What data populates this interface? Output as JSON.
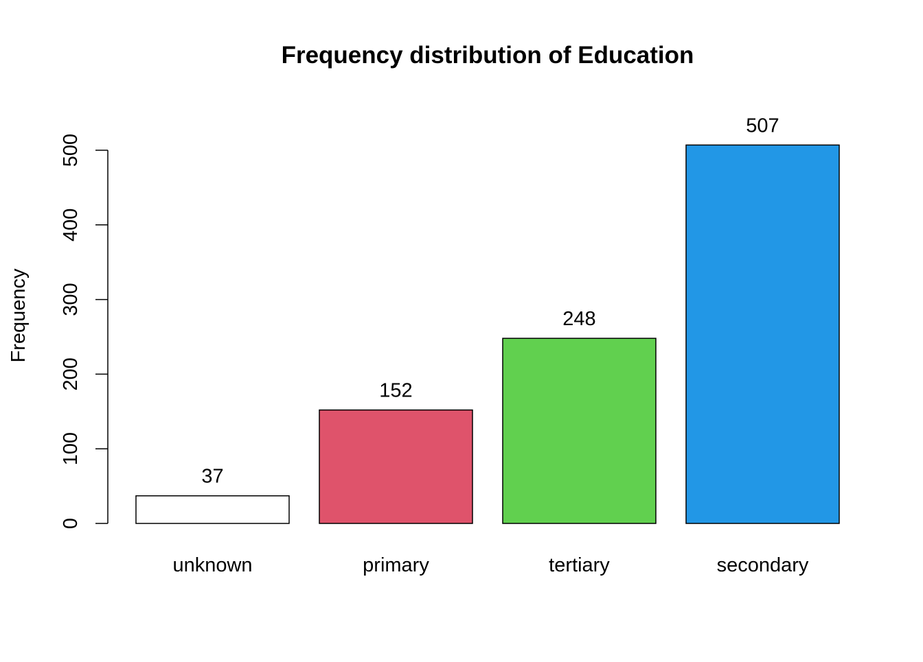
{
  "chart_data": {
    "type": "bar",
    "title": "Frequency distribution of Education",
    "xlabel": "",
    "ylabel": "Frequency",
    "categories": [
      "unknown",
      "primary",
      "tertiary",
      "secondary"
    ],
    "values": [
      37,
      152,
      248,
      507
    ],
    "value_labels": [
      "37",
      "152",
      "248",
      "507"
    ],
    "bar_colors": [
      "#ffffff",
      "#df536b",
      "#61d04f",
      "#2297e6"
    ],
    "yticks": [
      0,
      100,
      200,
      300,
      400,
      500
    ],
    "ylim": [
      0,
      507
    ],
    "grid": false,
    "legend": "none"
  }
}
